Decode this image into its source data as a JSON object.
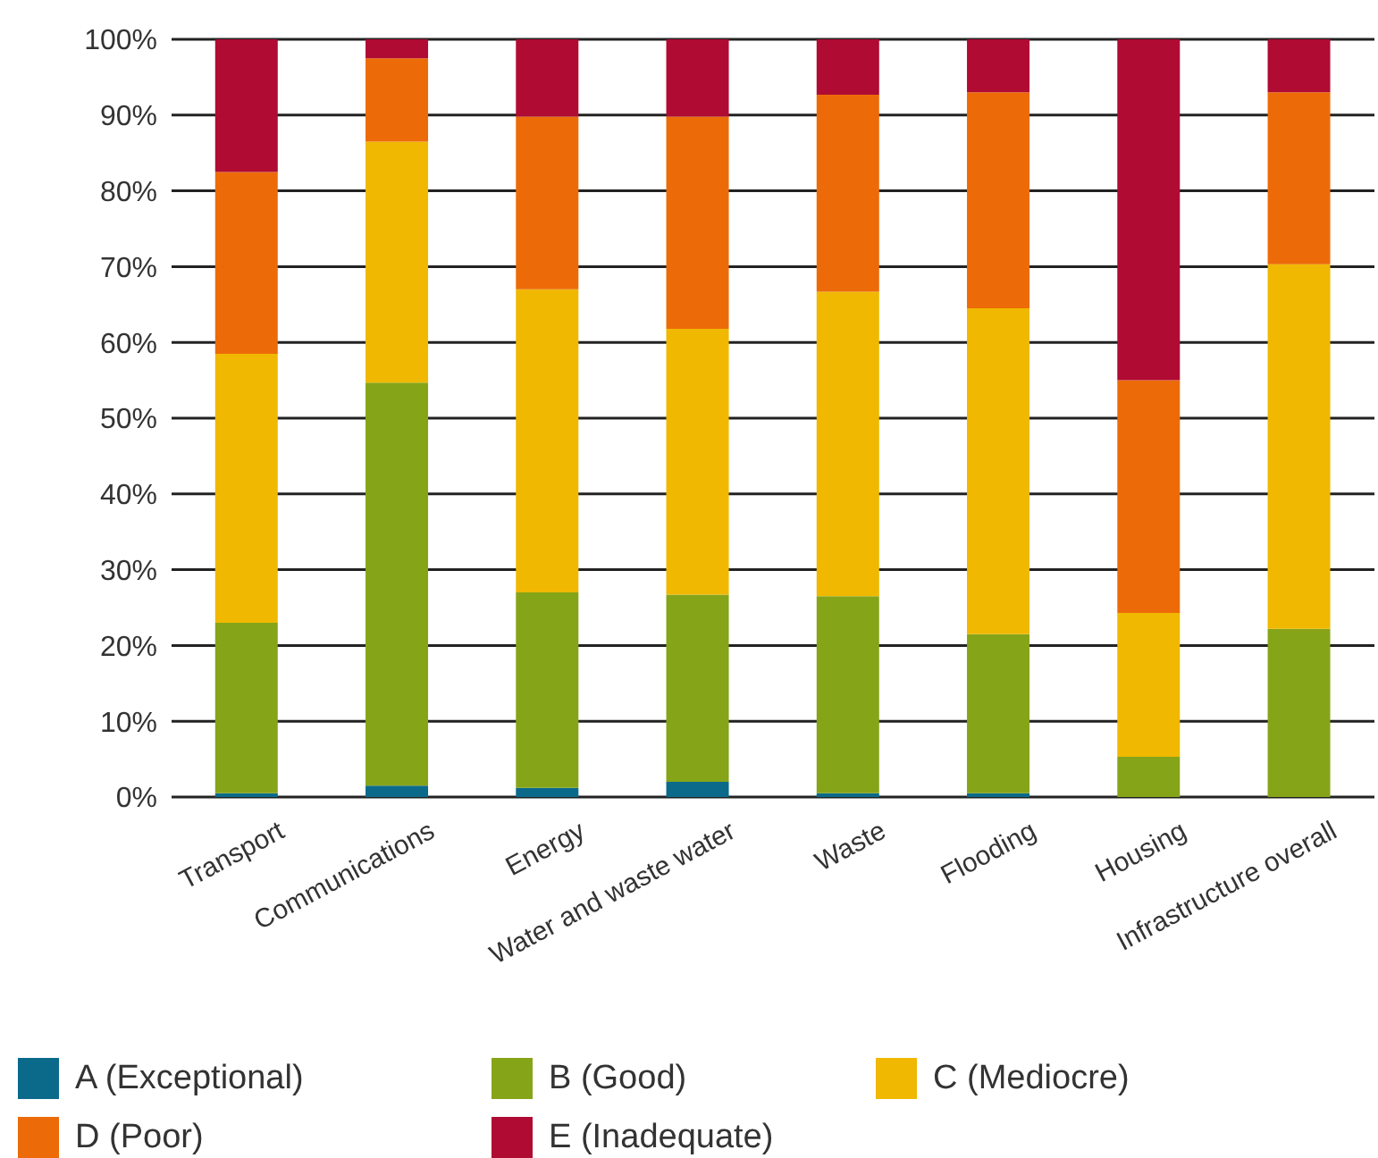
{
  "chart_data": {
    "type": "bar",
    "stacked": true,
    "categories": [
      "Transport",
      "Communications",
      "Energy",
      "Water and waste water",
      "Waste",
      "Flooding",
      "Housing",
      "Infrastructure overall"
    ],
    "series": [
      {
        "name": "A (Exceptional)",
        "color": "#0b6a8a",
        "values": [
          0.5,
          1.5,
          1.2,
          2,
          0.5,
          0.5,
          0,
          0
        ]
      },
      {
        "name": "B (Good)",
        "color": "#86a418",
        "values": [
          22.5,
          53.2,
          25.8,
          24.7,
          26,
          21,
          5.3,
          22.2
        ]
      },
      {
        "name": "C (Mediocre)",
        "color": "#f0b800",
        "values": [
          35.5,
          31.8,
          40,
          35.1,
          40.2,
          43,
          19,
          48.1
        ]
      },
      {
        "name": "D (Poor)",
        "color": "#ec6b08",
        "values": [
          24,
          11,
          22.8,
          28,
          26,
          28.5,
          30.7,
          22.7
        ]
      },
      {
        "name": "E (Inadequate)",
        "color": "#b00b33",
        "values": [
          17.5,
          2.5,
          10.2,
          10.2,
          7.3,
          7,
          45,
          7
        ]
      }
    ],
    "ylim": [
      0,
      100
    ],
    "yticks": [
      {
        "value": 0,
        "label": "0%"
      },
      {
        "value": 10,
        "label": "10%"
      },
      {
        "value": 20,
        "label": "20%"
      },
      {
        "value": 30,
        "label": "30%"
      },
      {
        "value": 40,
        "label": "40%"
      },
      {
        "value": 50,
        "label": "50%"
      },
      {
        "value": 60,
        "label": "60%"
      },
      {
        "value": 70,
        "label": "70%"
      },
      {
        "value": 80,
        "label": "80%"
      },
      {
        "value": 90,
        "label": "90%"
      },
      {
        "value": 100,
        "label": "100%"
      }
    ],
    "grid": "y",
    "legend": "bottom"
  }
}
